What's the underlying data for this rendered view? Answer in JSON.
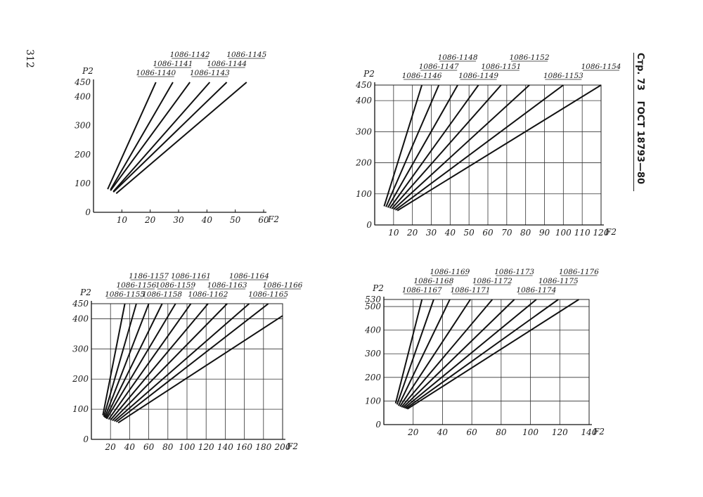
{
  "page_number": "312",
  "header": {
    "page_label": "Стр. 73",
    "standard": "ГОСТ 18793—80"
  },
  "chart_data": [
    {
      "type": "line",
      "ylabel": "P2",
      "xlabel": "F2",
      "xlim": [
        0,
        60
      ],
      "ylim": [
        0,
        450
      ],
      "xticks": [
        10,
        20,
        30,
        40,
        50,
        60
      ],
      "yticks": [
        0,
        100,
        200,
        300,
        400,
        450
      ],
      "xtick_labels": [
        "10",
        "20",
        "30",
        "40",
        "50",
        "60"
      ],
      "ytick_labels": [
        "0",
        "100",
        "200",
        "300",
        "400",
        "450"
      ],
      "grid": false,
      "series": [
        {
          "name": "1086-1140",
          "x": [
            5,
            22
          ],
          "y": [
            80,
            450
          ]
        },
        {
          "name": "1086-1141",
          "x": [
            6,
            28
          ],
          "y": [
            78,
            450
          ]
        },
        {
          "name": "1086-1142",
          "x": [
            6,
            34
          ],
          "y": [
            75,
            450
          ]
        },
        {
          "name": "1086-1143",
          "x": [
            7,
            41
          ],
          "y": [
            72,
            450
          ]
        },
        {
          "name": "1086-1144",
          "x": [
            7,
            47
          ],
          "y": [
            70,
            450
          ]
        },
        {
          "name": "1086-1145",
          "x": [
            8,
            54
          ],
          "y": [
            65,
            450
          ]
        }
      ]
    },
    {
      "type": "line",
      "ylabel": "P2",
      "xlabel": "F2",
      "xlim": [
        0,
        120
      ],
      "ylim": [
        0,
        450
      ],
      "xticks": [
        10,
        20,
        30,
        40,
        50,
        60,
        70,
        80,
        90,
        100,
        110,
        120
      ],
      "yticks": [
        0,
        100,
        200,
        300,
        400,
        450
      ],
      "xtick_labels": [
        "10",
        "20",
        "30",
        "40",
        "50",
        "60",
        "70",
        "80",
        "90",
        "100",
        "110",
        "120"
      ],
      "ytick_labels": [
        "0",
        "100",
        "200",
        "300",
        "400",
        "450"
      ],
      "grid": true,
      "series": [
        {
          "name": "1086-1146",
          "x": [
            5,
            25
          ],
          "y": [
            60,
            450
          ]
        },
        {
          "name": "1086-1147",
          "x": [
            6,
            34
          ],
          "y": [
            58,
            450
          ]
        },
        {
          "name": "1086-1148",
          "x": [
            7,
            44
          ],
          "y": [
            56,
            450
          ]
        },
        {
          "name": "1086-1149",
          "x": [
            8,
            55
          ],
          "y": [
            54,
            450
          ]
        },
        {
          "name": "1086-1151",
          "x": [
            9,
            67
          ],
          "y": [
            52,
            450
          ]
        },
        {
          "name": "1086-1152",
          "x": [
            10,
            82
          ],
          "y": [
            50,
            450
          ]
        },
        {
          "name": "1086-1153",
          "x": [
            11,
            100
          ],
          "y": [
            48,
            450
          ]
        },
        {
          "name": "1086-1154",
          "x": [
            12,
            120
          ],
          "y": [
            46,
            450
          ]
        }
      ]
    },
    {
      "type": "line",
      "ylabel": "P2",
      "xlabel": "F2",
      "xlim": [
        0,
        200
      ],
      "ylim": [
        0,
        450
      ],
      "xticks": [
        20,
        40,
        60,
        80,
        100,
        120,
        140,
        160,
        180,
        200
      ],
      "yticks": [
        0,
        100,
        200,
        300,
        400,
        450
      ],
      "xtick_labels": [
        "20",
        "40",
        "60",
        "80",
        "100",
        "120",
        "140",
        "160",
        "180",
        "200"
      ],
      "ytick_labels": [
        "0",
        "100",
        "200",
        "300",
        "400",
        "450"
      ],
      "grid": true,
      "series": [
        {
          "name": "1086-1155",
          "x": [
            12,
            35
          ],
          "y": [
            80,
            450
          ]
        },
        {
          "name": "1086-1156",
          "x": [
            13,
            47
          ],
          "y": [
            75,
            450
          ]
        },
        {
          "name": "1186-1157",
          "x": [
            14,
            60
          ],
          "y": [
            72,
            450
          ]
        },
        {
          "name": "1086-1158",
          "x": [
            15,
            74
          ],
          "y": [
            70,
            450
          ]
        },
        {
          "name": "1086-1159",
          "x": [
            16,
            88
          ],
          "y": [
            68,
            450
          ]
        },
        {
          "name": "1086-1161",
          "x": [
            18,
            104
          ],
          "y": [
            66,
            450
          ]
        },
        {
          "name": "1086-1162",
          "x": [
            20,
            122
          ],
          "y": [
            64,
            450
          ]
        },
        {
          "name": "1086-1163",
          "x": [
            22,
            142
          ],
          "y": [
            62,
            450
          ]
        },
        {
          "name": "1086-1164",
          "x": [
            24,
            165
          ],
          "y": [
            60,
            450
          ]
        },
        {
          "name": "1086-1165",
          "x": [
            26,
            185
          ],
          "y": [
            58,
            450
          ]
        },
        {
          "name": "1086-1166",
          "x": [
            28,
            200
          ],
          "y": [
            55,
            410
          ]
        }
      ]
    },
    {
      "type": "line",
      "ylabel": "P2",
      "xlabel": "F2",
      "xlim": [
        0,
        140
      ],
      "ylim": [
        0,
        530
      ],
      "xticks": [
        20,
        40,
        60,
        80,
        100,
        120,
        140
      ],
      "yticks": [
        0,
        100,
        200,
        300,
        400,
        500,
        530
      ],
      "xtick_labels": [
        "20",
        "40",
        "60",
        "80",
        "100",
        "120",
        "140"
      ],
      "ytick_labels": [
        "0",
        "100",
        "200",
        "300",
        "400",
        "500",
        "530"
      ],
      "grid": true,
      "series": [
        {
          "name": "1086-1167",
          "x": [
            8,
            26
          ],
          "y": [
            90,
            530
          ]
        },
        {
          "name": "1086-1168",
          "x": [
            9,
            34
          ],
          "y": [
            85,
            530
          ]
        },
        {
          "name": "1086-1169",
          "x": [
            10,
            45
          ],
          "y": [
            80,
            530
          ]
        },
        {
          "name": "1086-1171",
          "x": [
            11,
            59
          ],
          "y": [
            77,
            530
          ]
        },
        {
          "name": "1086-1172",
          "x": [
            12,
            74
          ],
          "y": [
            74,
            530
          ]
        },
        {
          "name": "1086-1173",
          "x": [
            13,
            89
          ],
          "y": [
            72,
            530
          ]
        },
        {
          "name": "1086-1174",
          "x": [
            14,
            104
          ],
          "y": [
            70,
            530
          ]
        },
        {
          "name": "1086-1175",
          "x": [
            15,
            119
          ],
          "y": [
            68,
            530
          ]
        },
        {
          "name": "1086-1176",
          "x": [
            16,
            133
          ],
          "y": [
            66,
            530
          ]
        }
      ]
    }
  ]
}
